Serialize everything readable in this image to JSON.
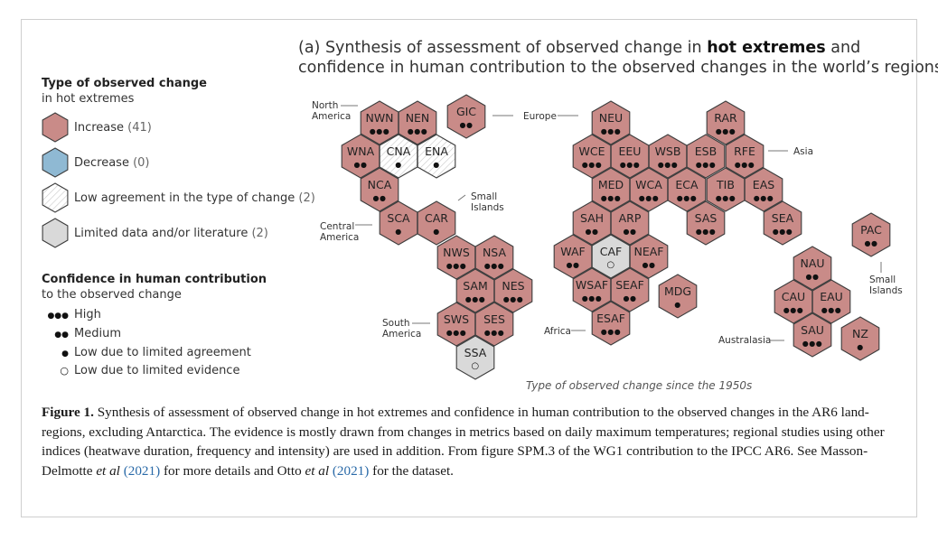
{
  "title": {
    "pre": "(a) Synthesis of assessment of observed change in ",
    "bold": "hot extremes",
    "post": " and",
    "line2": "confidence in human contribution to the observed changes in the world’s regions"
  },
  "legend": {
    "type_heading": "Type of observed change",
    "type_sub": "in hot extremes",
    "types": [
      {
        "key": "increase",
        "label": "Increase",
        "count": "(41)",
        "color": "#c98b88"
      },
      {
        "key": "decrease",
        "label": "Decrease",
        "count": "(0)",
        "color": "#8fb9d3"
      },
      {
        "key": "low",
        "label": "Low agreement in the type of change",
        "count": "(2)",
        "color": "#ffffff"
      },
      {
        "key": "limited",
        "label": "Limited data and/or literature",
        "count": "(2)",
        "color": "#d9d9d9"
      }
    ],
    "conf_heading": "Confidence in human contribution",
    "conf_sub": "to the observed change",
    "confidence": [
      {
        "key": "high",
        "symbol": "●●●",
        "label": "High"
      },
      {
        "key": "medium",
        "symbol": "●●",
        "label": "Medium"
      },
      {
        "key": "lowagree",
        "symbol": "●",
        "label": "Low due to limited agreement"
      },
      {
        "key": "lowevid",
        "symbol": "○",
        "label": "Low due to limited evidence"
      }
    ]
  },
  "regions": [
    {
      "code": "NWN",
      "type": "increase",
      "conf": "high"
    },
    {
      "code": "NEN",
      "type": "increase",
      "conf": "high"
    },
    {
      "code": "GIC",
      "type": "increase",
      "conf": "medium"
    },
    {
      "code": "WNA",
      "type": "increase",
      "conf": "medium"
    },
    {
      "code": "CNA",
      "type": "low",
      "conf": "lowagree"
    },
    {
      "code": "ENA",
      "type": "low",
      "conf": "lowagree"
    },
    {
      "code": "NCA",
      "type": "increase",
      "conf": "medium"
    },
    {
      "code": "SCA",
      "type": "increase",
      "conf": "lowagree"
    },
    {
      "code": "CAR",
      "type": "increase",
      "conf": "lowagree"
    },
    {
      "code": "NWS",
      "type": "increase",
      "conf": "high"
    },
    {
      "code": "NSA",
      "type": "increase",
      "conf": "high"
    },
    {
      "code": "SAM",
      "type": "increase",
      "conf": "high"
    },
    {
      "code": "NES",
      "type": "increase",
      "conf": "high"
    },
    {
      "code": "SWS",
      "type": "increase",
      "conf": "high"
    },
    {
      "code": "SES",
      "type": "increase",
      "conf": "high"
    },
    {
      "code": "SSA",
      "type": "limited",
      "conf": "lowevid"
    },
    {
      "code": "NEU",
      "type": "increase",
      "conf": "high"
    },
    {
      "code": "RAR",
      "type": "increase",
      "conf": "high"
    },
    {
      "code": "WCE",
      "type": "increase",
      "conf": "high"
    },
    {
      "code": "EEU",
      "type": "increase",
      "conf": "high"
    },
    {
      "code": "WSB",
      "type": "increase",
      "conf": "high"
    },
    {
      "code": "ESB",
      "type": "increase",
      "conf": "high"
    },
    {
      "code": "RFE",
      "type": "increase",
      "conf": "high"
    },
    {
      "code": "MED",
      "type": "increase",
      "conf": "high"
    },
    {
      "code": "WCA",
      "type": "increase",
      "conf": "high"
    },
    {
      "code": "ECA",
      "type": "increase",
      "conf": "high"
    },
    {
      "code": "TIB",
      "type": "increase",
      "conf": "high"
    },
    {
      "code": "EAS",
      "type": "increase",
      "conf": "high"
    },
    {
      "code": "SAH",
      "type": "increase",
      "conf": "medium"
    },
    {
      "code": "ARP",
      "type": "increase",
      "conf": "medium"
    },
    {
      "code": "SAS",
      "type": "increase",
      "conf": "high"
    },
    {
      "code": "SEA",
      "type": "increase",
      "conf": "high"
    },
    {
      "code": "WAF",
      "type": "increase",
      "conf": "medium"
    },
    {
      "code": "CAF",
      "type": "limited",
      "conf": "lowevid"
    },
    {
      "code": "NEAF",
      "type": "increase",
      "conf": "medium"
    },
    {
      "code": "WSAF",
      "type": "increase",
      "conf": "high"
    },
    {
      "code": "SEAF",
      "type": "increase",
      "conf": "medium"
    },
    {
      "code": "MDG",
      "type": "increase",
      "conf": "lowagree"
    },
    {
      "code": "ESAF",
      "type": "increase",
      "conf": "high"
    },
    {
      "code": "PAC",
      "type": "increase",
      "conf": "medium"
    },
    {
      "code": "NAU",
      "type": "increase",
      "conf": "medium"
    },
    {
      "code": "CAU",
      "type": "increase",
      "conf": "high"
    },
    {
      "code": "EAU",
      "type": "increase",
      "conf": "high"
    },
    {
      "code": "SAU",
      "type": "increase",
      "conf": "high"
    },
    {
      "code": "NZ",
      "type": "increase",
      "conf": "lowagree"
    }
  ],
  "continents": {
    "north_america": [
      "North",
      "America"
    ],
    "europe": "Europe",
    "asia": "Asia",
    "small_islands_1": [
      "Small",
      "Islands"
    ],
    "central_america": [
      "Central",
      "America"
    ],
    "south_america": [
      "South",
      "America"
    ],
    "africa": "Africa",
    "australasia": "Australasia",
    "small_islands_2": [
      "Small",
      "Islands"
    ]
  },
  "footnote": "Type of observed change since the 1950s",
  "caption": {
    "label": "Figure 1.",
    "t1": " Synthesis of assessment of observed change in hot extremes and confidence in human contribution to the observed changes in the AR6 land-regions, excluding Antarctica. The evidence is mostly drawn from changes in metrics based on daily maximum temperatures; regional studies using other indices (heatwave duration, frequency and intensity) are used in addition. From figure SPM.3 of the WG1 contribution to the IPCC AR6. See Masson-Delmotte ",
    "etal1": "et al",
    "ref1": " (2021)",
    "t2": " for more details and Otto ",
    "etal2": "et al",
    "ref2": " (2021)",
    "t3": " for the dataset."
  }
}
